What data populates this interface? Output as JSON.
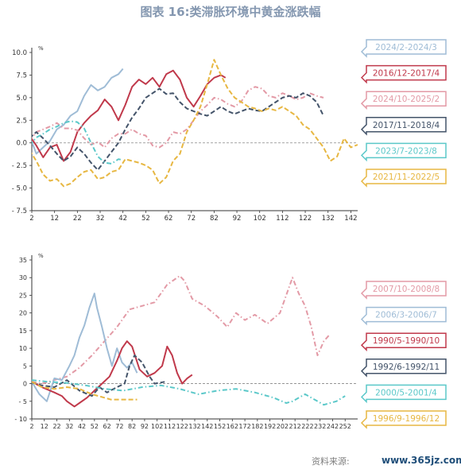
{
  "title": "图表 16:类滞胀环境中黄金涨跌幅",
  "source": "资料来源:",
  "watermark": "www.365jz.com",
  "chart_data": [
    {
      "type": "line",
      "ylabel": "%",
      "ylim": [
        -7.5,
        10
      ],
      "yticks": [
        -7.5,
        -5,
        -2.5,
        0,
        2.5,
        5,
        7.5,
        10
      ],
      "ytick_labels": [
        "- 7.5",
        "- 5.0",
        "- 2.5",
        "0.0",
        "2.5",
        "5.0",
        "7.5",
        "10.0"
      ],
      "xlim": [
        2,
        145
      ],
      "xticks": [
        2,
        12,
        22,
        32,
        42,
        52,
        62,
        72,
        82,
        92,
        102,
        112,
        122,
        132,
        142
      ],
      "legend_position": "right",
      "series": [
        {
          "name": "2024/2-2024/3",
          "color": "#9fbcd6",
          "dash": "solid",
          "x": [
            1,
            4,
            7,
            10,
            13,
            16,
            19,
            22,
            25,
            28,
            31,
            34,
            37,
            40,
            42
          ],
          "y": [
            0.8,
            -1.2,
            -0.5,
            0.2,
            1.5,
            2.0,
            3.0,
            3.5,
            5.2,
            6.4,
            5.8,
            6.2,
            7.2,
            7.6,
            8.2
          ]
        },
        {
          "name": "2016/12-2017/4",
          "color": "#c0394b",
          "dash": "solid",
          "x": [
            1,
            4,
            7,
            10,
            13,
            16,
            19,
            22,
            25,
            28,
            31,
            34,
            37,
            40,
            43,
            46,
            49,
            52,
            55,
            58,
            61,
            64,
            67,
            70,
            73,
            76,
            79,
            82,
            85,
            87
          ],
          "y": [
            0.8,
            -0.3,
            -1.6,
            -0.5,
            -0.2,
            -2.0,
            -1.0,
            1.2,
            2.2,
            3.0,
            3.6,
            4.8,
            4.0,
            2.5,
            4.2,
            6.2,
            7.0,
            6.5,
            7.2,
            6.2,
            7.6,
            8.0,
            7.0,
            5.0,
            4.0,
            5.2,
            6.5,
            7.2,
            7.5,
            7.2
          ]
        },
        {
          "name": "2024/10-2025/2",
          "color": "#e39aa6",
          "dash": "dashdot",
          "x": [
            1,
            4,
            7,
            10,
            13,
            16,
            19,
            22,
            25,
            28,
            31,
            34,
            37,
            40,
            43,
            46,
            49,
            52,
            55,
            58,
            61,
            64,
            67,
            70,
            73,
            76,
            79,
            82,
            85,
            88,
            91,
            94,
            97,
            100,
            103,
            106,
            109,
            112,
            115,
            118,
            121,
            124,
            127,
            130
          ],
          "y": [
            0.2,
            1.2,
            1.5,
            1.8,
            2.2,
            1.6,
            1.6,
            1.4,
            0.5,
            -0.2,
            0.1,
            -0.5,
            0.5,
            1.0,
            1.0,
            1.5,
            1.0,
            0.8,
            -0.3,
            -0.5,
            0.0,
            1.2,
            1.0,
            1.5,
            2.5,
            3.5,
            4.2,
            5.0,
            4.8,
            4.3,
            4.0,
            4.6,
            5.8,
            6.2,
            6.0,
            5.2,
            5.0,
            5.5,
            5.2,
            4.8,
            5.0,
            5.5,
            5.2,
            5.0
          ]
        },
        {
          "name": "2017/11-2018/4",
          "color": "#44546a",
          "dash": "dashed",
          "x": [
            1,
            4,
            7,
            10,
            13,
            16,
            19,
            22,
            25,
            28,
            31,
            34,
            37,
            40,
            43,
            46,
            49,
            52,
            55,
            58,
            61,
            64,
            67,
            70,
            73,
            76,
            79,
            82,
            85,
            88,
            91,
            94,
            97,
            100,
            103,
            106,
            109,
            112,
            115,
            118,
            121,
            124,
            127,
            130
          ],
          "y": [
            0.5,
            1.2,
            0.5,
            -0.3,
            -1.2,
            -2.0,
            -1.5,
            -0.5,
            -1.2,
            -2.2,
            -3.0,
            -2.0,
            -1.0,
            0.0,
            1.5,
            2.8,
            3.8,
            5.0,
            5.5,
            6.0,
            5.4,
            5.5,
            4.5,
            3.8,
            3.5,
            3.2,
            3.0,
            3.5,
            4.0,
            3.5,
            3.2,
            3.5,
            3.8,
            3.6,
            3.5,
            4.0,
            4.5,
            5.0,
            5.2,
            5.0,
            5.5,
            5.2,
            4.5,
            3.0
          ]
        },
        {
          "name": "2023/7-2023/8",
          "color": "#5bc8c9",
          "dash": "dashdot",
          "x": [
            1,
            4,
            7,
            10,
            13,
            16,
            19,
            22,
            25,
            28,
            31,
            34,
            37,
            40,
            42
          ],
          "y": [
            -0.3,
            0.6,
            1.0,
            1.5,
            1.8,
            2.2,
            2.4,
            2.3,
            1.6,
            0.0,
            -1.5,
            -2.2,
            -2.3,
            -1.8,
            -1.9
          ]
        },
        {
          "name": "2021/11-2022/5",
          "color": "#e7b742",
          "dash": "dashed",
          "x": [
            1,
            4,
            7,
            10,
            13,
            16,
            19,
            22,
            25,
            28,
            31,
            34,
            37,
            40,
            43,
            46,
            49,
            52,
            55,
            58,
            61,
            64,
            67,
            70,
            73,
            76,
            79,
            82,
            85,
            88,
            91,
            94,
            97,
            100,
            103,
            106,
            109,
            112,
            115,
            118,
            121,
            124,
            127,
            130,
            133,
            136,
            139,
            142,
            145
          ],
          "y": [
            -0.8,
            -2.0,
            -3.5,
            -4.2,
            -4.0,
            -4.8,
            -4.5,
            -3.8,
            -3.2,
            -3.0,
            -4.0,
            -3.8,
            -3.2,
            -3.0,
            -1.8,
            -2.0,
            -2.2,
            -2.5,
            -3.0,
            -4.5,
            -3.8,
            -2.0,
            -1.2,
            1.2,
            2.5,
            4.0,
            6.5,
            9.2,
            7.5,
            6.0,
            5.0,
            4.5,
            4.0,
            3.8,
            3.5,
            3.8,
            3.6,
            4.0,
            3.5,
            3.0,
            2.0,
            1.5,
            0.5,
            -0.5,
            -2.0,
            -1.5,
            0.5,
            -0.5,
            -0.2
          ]
        }
      ]
    },
    {
      "type": "line",
      "ylabel": "%",
      "ylim": [
        -10,
        35
      ],
      "yticks": [
        -10,
        -5,
        0,
        5,
        10,
        15,
        20,
        25,
        30,
        35
      ],
      "ytick_labels": [
        "- 10",
        "- 5",
        "0",
        "5",
        "10",
        "15",
        "20",
        "25",
        "30",
        "35"
      ],
      "xlim": [
        2,
        262
      ],
      "xticks": [
        2,
        12,
        22,
        32,
        42,
        52,
        62,
        72,
        82,
        92,
        102,
        112,
        122,
        132,
        142,
        152,
        162,
        172,
        182,
        192,
        202,
        212,
        222,
        232,
        242,
        252
      ],
      "legend_position": "right",
      "series": [
        {
          "name": "2007/10-2008/8",
          "color": "#e39aa6",
          "dash": "dashdot",
          "x": [
            2,
            10,
            20,
            30,
            40,
            50,
            60,
            70,
            80,
            90,
            100,
            110,
            120,
            124,
            130,
            140,
            150,
            158,
            165,
            172,
            180,
            190,
            200,
            205,
            210,
            215,
            220,
            225,
            230,
            235,
            240
          ],
          "y": [
            0.5,
            0,
            1.0,
            2.0,
            4.5,
            8.0,
            12.0,
            16.0,
            21.0,
            22.0,
            23.0,
            28.0,
            30.5,
            29.0,
            24.0,
            22.0,
            19.0,
            16.0,
            20.0,
            18.0,
            19.5,
            17.0,
            20.0,
            25.0,
            30.0,
            25.5,
            22.0,
            16.0,
            8.0,
            12.0,
            14.0
          ]
        },
        {
          "name": "2006/3-2006/7",
          "color": "#9fbcd6",
          "dash": "solid",
          "x": [
            2,
            8,
            14,
            20,
            26,
            32,
            36,
            40,
            44,
            48,
            52,
            54,
            58,
            62,
            66,
            70,
            74,
            78,
            82,
            86
          ],
          "y": [
            0.5,
            -3.0,
            -5.0,
            1.5,
            1.0,
            5.0,
            8.0,
            13.0,
            16.5,
            21.5,
            25.5,
            21.5,
            16.0,
            10.0,
            5.0,
            10.0,
            6.0,
            4.5,
            6.0,
            3.0
          ]
        },
        {
          "name": "1990/5-1990/10",
          "color": "#c0394b",
          "dash": "solid",
          "x": [
            2,
            10,
            20,
            26,
            30,
            36,
            40,
            46,
            52,
            58,
            64,
            70,
            74,
            78,
            82,
            88,
            94,
            100,
            106,
            110,
            114,
            118,
            122,
            126,
            130
          ],
          "y": [
            0.5,
            -1.0,
            -2.5,
            -3.5,
            -5.0,
            -6.5,
            -5.5,
            -4.0,
            -2.0,
            0,
            2.0,
            6.5,
            10.0,
            12.0,
            10.5,
            4.0,
            2.0,
            3.0,
            5.0,
            10.5,
            8.0,
            3.0,
            0.0,
            1.5,
            2.5
          ]
        },
        {
          "name": "1992/6-1992/11",
          "color": "#44546a",
          "dash": "dashed",
          "x": [
            2,
            10,
            20,
            30,
            40,
            50,
            56,
            62,
            70,
            76,
            80,
            84,
            90,
            96,
            100,
            108
          ],
          "y": [
            0.3,
            -0.5,
            -1.0,
            1.0,
            -2.0,
            -3.5,
            -1.0,
            -2.5,
            -1.0,
            0.0,
            5.0,
            8.0,
            6.0,
            2.0,
            0.0,
            0.5
          ]
        },
        {
          "name": "2000/5-2001/4",
          "color": "#5bc8c9",
          "dash": "dashdot",
          "x": [
            2,
            15,
            30,
            45,
            60,
            75,
            90,
            105,
            120,
            135,
            150,
            165,
            180,
            195,
            205,
            210,
            220,
            235,
            245,
            252
          ],
          "y": [
            1.0,
            0.5,
            0.2,
            -0.5,
            -1.5,
            -2.0,
            -1.0,
            -0.5,
            -1.5,
            -3.0,
            -2.0,
            -1.5,
            -2.5,
            -4.0,
            -5.5,
            -5.0,
            -3.0,
            -6.0,
            -5.0,
            -3.5
          ]
        },
        {
          "name": "1996/9-1996/12",
          "color": "#e7b742",
          "dash": "dashed",
          "x": [
            2,
            10,
            20,
            30,
            40,
            50,
            60,
            65,
            70,
            80,
            86
          ],
          "y": [
            0.5,
            -1.0,
            -1.5,
            -1.0,
            -1.5,
            -3.0,
            -4.0,
            -4.5,
            -4.5,
            -4.5,
            -4.5
          ]
        }
      ]
    }
  ]
}
